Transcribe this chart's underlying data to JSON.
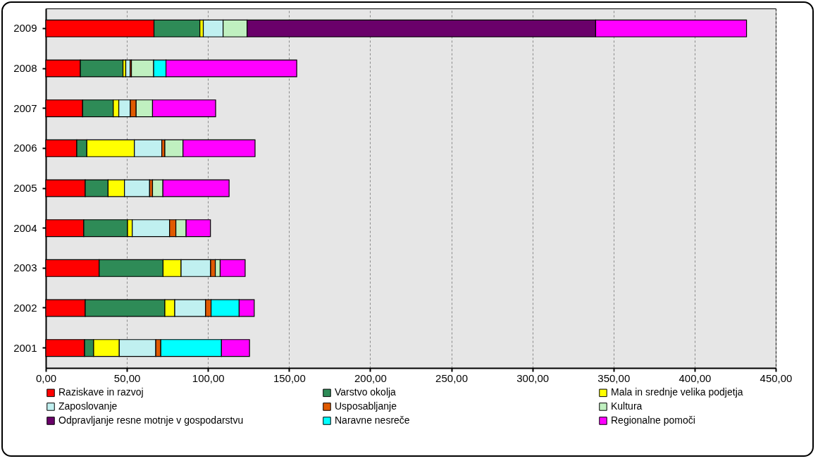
{
  "chart_data": {
    "type": "bar",
    "orientation": "horizontal",
    "stacked": true,
    "categories": [
      "2009",
      "2008",
      "2007",
      "2006",
      "2005",
      "2004",
      "2003",
      "2002",
      "2001"
    ],
    "series": [
      {
        "name": "Raziskave in razvoj",
        "color": "#ff0000",
        "values": [
          66.7,
          21.3,
          22.7,
          19.1,
          24.3,
          23.4,
          32.9,
          24.3,
          23.9
        ]
      },
      {
        "name": "Varstvo okolja",
        "color": "#2e8b57",
        "values": [
          28.3,
          26.3,
          18.9,
          6.2,
          14.1,
          27.0,
          39.4,
          49.1,
          5.6
        ]
      },
      {
        "name": "Mala in srednje velika podjetja",
        "color": "#ffff00",
        "values": [
          2.1,
          1.7,
          3.4,
          29.3,
          10.1,
          2.9,
          11.1,
          6.1,
          15.8
        ]
      },
      {
        "name": "Zaposlovanje",
        "color": "#c0f0f0",
        "values": [
          12.2,
          2.7,
          7.1,
          16.9,
          15.5,
          23.0,
          18.2,
          19.0,
          22.5
        ]
      },
      {
        "name": "Usposabljanje",
        "color": "#e05a00",
        "values": [
          null,
          0.8,
          3.6,
          1.9,
          1.8,
          3.9,
          2.9,
          3.4,
          3.1
        ]
      },
      {
        "name": "Kultura",
        "color": "#c0f0c0",
        "values": [
          14.8,
          13.7,
          10.1,
          11.2,
          6.4,
          6.3,
          3.0,
          null,
          null
        ]
      },
      {
        "name": "Odpravljanje resne motnje v gospodarstvu",
        "color": "#6a006a",
        "values": [
          214.9,
          null,
          null,
          null,
          null,
          null,
          null,
          null,
          null
        ]
      },
      {
        "name": "Naravne nesreče",
        "color": "#00ffff",
        "values": [
          null,
          7.6,
          null,
          null,
          null,
          null,
          null,
          17.3,
          37.4
        ]
      },
      {
        "name": "Regionalne pomoči",
        "color": "#ff00ff",
        "values": [
          93.0,
          80.6,
          38.9,
          44.4,
          40.8,
          15.0,
          15.4,
          9.3,
          17.3
        ]
      }
    ],
    "xlim": [
      0,
      450
    ],
    "xticks": [
      {
        "value": 0,
        "label": "0,00"
      },
      {
        "value": 50,
        "label": "50,00"
      },
      {
        "value": 100,
        "label": "100,00"
      },
      {
        "value": 150,
        "label": "150,00"
      },
      {
        "value": 200,
        "label": "200,00"
      },
      {
        "value": 250,
        "label": "250,00"
      },
      {
        "value": 300,
        "label": "300,00"
      },
      {
        "value": 350,
        "label": "350,00"
      },
      {
        "value": 400,
        "label": "400,00"
      },
      {
        "value": 450,
        "label": "450,00"
      }
    ],
    "grid": "x",
    "legend": "bottom"
  }
}
